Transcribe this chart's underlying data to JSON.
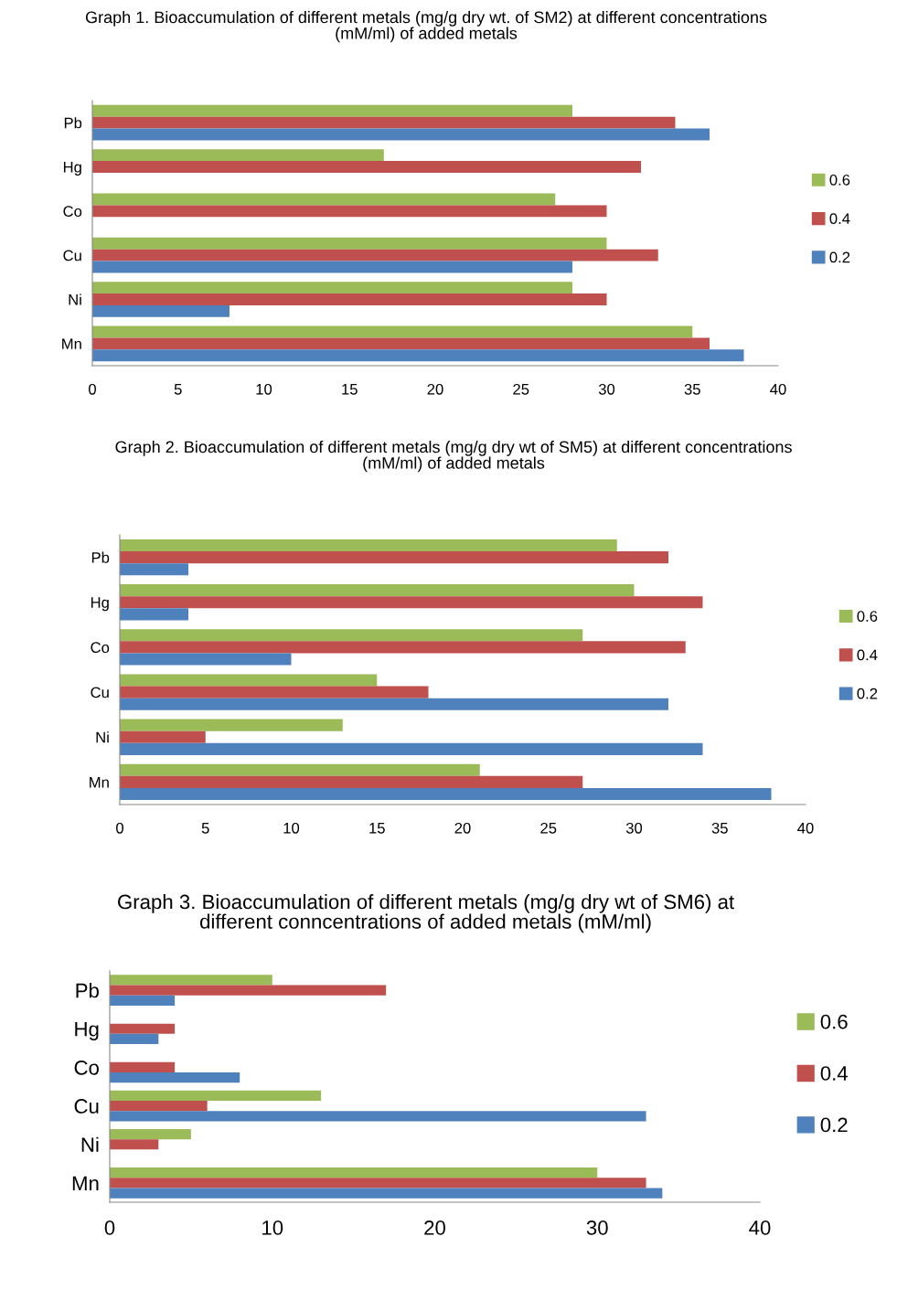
{
  "chart_data": [
    {
      "type": "bar",
      "orientation": "horizontal",
      "title": "Graph 1. Bioaccumulation of different metals (mg/g dry wt. of SM2) at different concentrations (mM/ml) of added metals",
      "categories": [
        "Pb",
        "Hg",
        "Co",
        "Cu",
        "Ni",
        "Mn"
      ],
      "xlim": [
        0,
        40
      ],
      "xticks": [
        0,
        5,
        10,
        15,
        20,
        25,
        30,
        35,
        40
      ],
      "grid": false,
      "legend": "right",
      "series": [
        {
          "name": "0.6",
          "color": "#9bbb59",
          "values": [
            28,
            17,
            27,
            30,
            28,
            35
          ]
        },
        {
          "name": "0.4",
          "color": "#c0504d",
          "values": [
            34,
            32,
            30,
            33,
            30,
            36
          ]
        },
        {
          "name": "0.2",
          "color": "#4f81bd",
          "values": [
            36,
            null,
            null,
            28,
            8,
            38
          ]
        }
      ]
    },
    {
      "type": "bar",
      "orientation": "horizontal",
      "title": "Graph 2. Bioaccumulation of different metals (mg/g dry wt of SM5) at different concentrations (mM/ml) of added metals",
      "categories": [
        "Pb",
        "Hg",
        "Co",
        "Cu",
        "Ni",
        "Mn"
      ],
      "xlim": [
        0,
        40
      ],
      "xticks": [
        0,
        5,
        10,
        15,
        20,
        25,
        30,
        35,
        40
      ],
      "grid": false,
      "legend": "right",
      "series": [
        {
          "name": "0.6",
          "color": "#9bbb59",
          "values": [
            29,
            30,
            27,
            15,
            13,
            21
          ]
        },
        {
          "name": "0.4",
          "color": "#c0504d",
          "values": [
            32,
            34,
            33,
            18,
            5,
            27
          ]
        },
        {
          "name": "0.2",
          "color": "#4f81bd",
          "values": [
            4,
            4,
            10,
            32,
            34,
            38
          ]
        }
      ]
    },
    {
      "type": "bar",
      "orientation": "horizontal",
      "title": "Graph 3. Bioaccumulation of different metals (mg/g dry wt of SM6) at different conncentrations of added metals (mM/ml)",
      "categories": [
        "Pb",
        "Hg",
        "Co",
        "Cu",
        "Ni",
        "Mn"
      ],
      "xlim": [
        0,
        40
      ],
      "xticks": [
        0,
        10,
        20,
        30,
        40
      ],
      "grid": false,
      "legend": "right",
      "series": [
        {
          "name": "0.6",
          "color": "#9bbb59",
          "values": [
            10,
            null,
            null,
            13,
            5,
            30
          ]
        },
        {
          "name": "0.4",
          "color": "#c0504d",
          "values": [
            17,
            4,
            4,
            6,
            3,
            33
          ]
        },
        {
          "name": "0.2",
          "color": "#4f81bd",
          "values": [
            4,
            3,
            8,
            33,
            null,
            34
          ]
        }
      ]
    }
  ]
}
